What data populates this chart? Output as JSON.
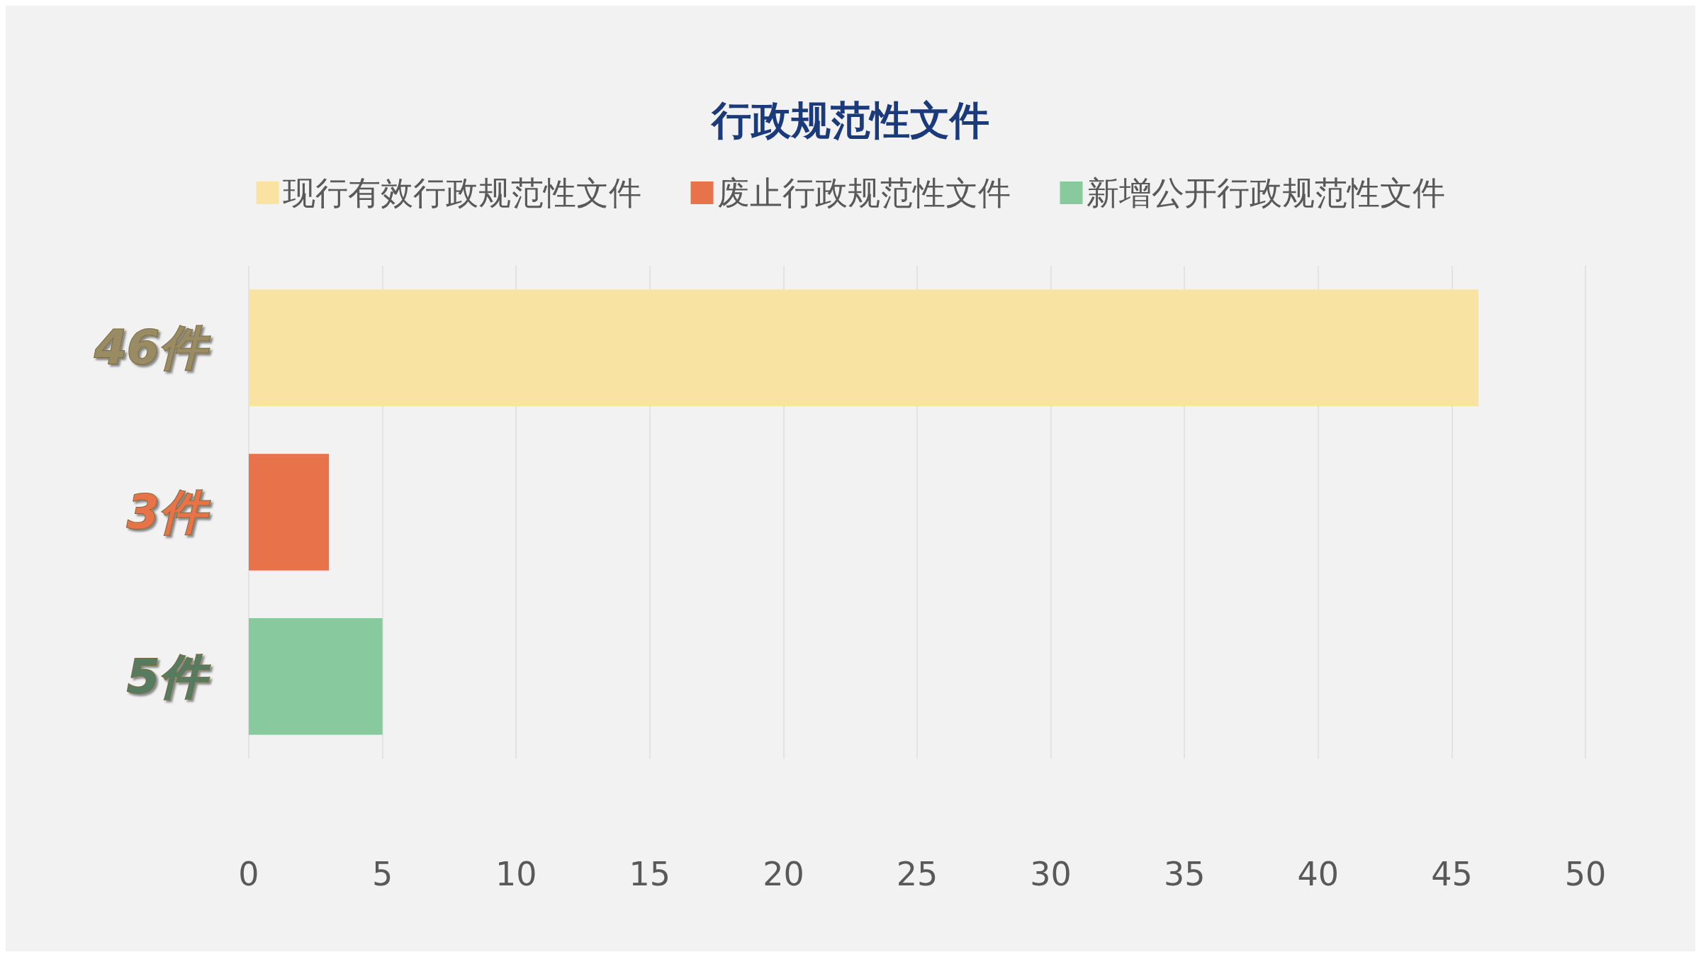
{
  "chart_data": {
    "type": "bar",
    "orientation": "horizontal",
    "title": "行政规范性文件",
    "categories": [
      "46件",
      "3件",
      "5件"
    ],
    "series": [
      {
        "name": "现行有效行政规范性文件",
        "color": "#f8e3a3",
        "values": [
          46,
          null,
          null
        ]
      },
      {
        "name": "废止行政规范性文件",
        "color": "#e8734a",
        "values": [
          null,
          3,
          null
        ]
      },
      {
        "name": "新增公开行政规范性文件",
        "color": "#88c99d",
        "values": [
          null,
          null,
          5
        ]
      }
    ],
    "xlim": [
      0,
      50
    ],
    "xticks": [
      0,
      5,
      10,
      15,
      20,
      25,
      30,
      35,
      40,
      45,
      50
    ],
    "grid": "x",
    "legend": "top"
  }
}
